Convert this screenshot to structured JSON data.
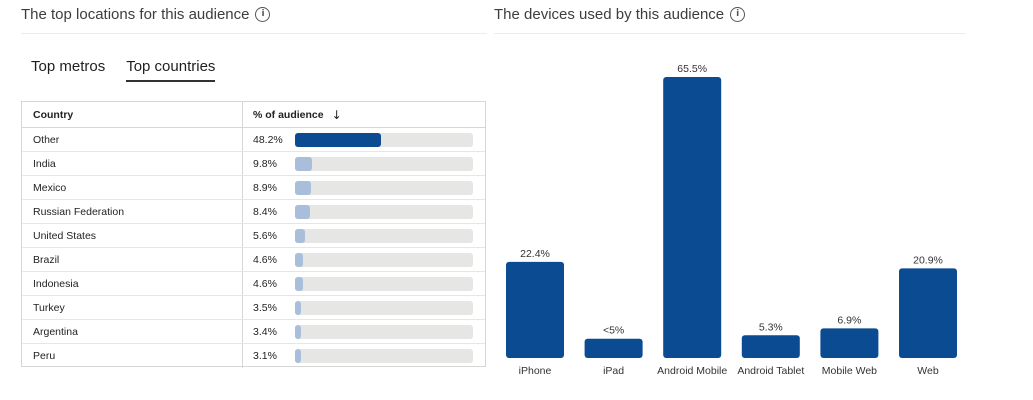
{
  "locations": {
    "title": "The top locations for this audience",
    "tabs": [
      "Top metros",
      "Top countries"
    ],
    "active_tab": 1,
    "table": {
      "headers": {
        "country": "Country",
        "pct": "% of audience"
      },
      "rows": [
        {
          "country": "Other",
          "pct_label": "48.2%",
          "value": 48.2
        },
        {
          "country": "India",
          "pct_label": "9.8%",
          "value": 9.8
        },
        {
          "country": "Mexico",
          "pct_label": "8.9%",
          "value": 8.9
        },
        {
          "country": "Russian Federation",
          "pct_label": "8.4%",
          "value": 8.4
        },
        {
          "country": "United States",
          "pct_label": "5.6%",
          "value": 5.6
        },
        {
          "country": "Brazil",
          "pct_label": "4.6%",
          "value": 4.6
        },
        {
          "country": "Indonesia",
          "pct_label": "4.6%",
          "value": 4.6
        },
        {
          "country": "Turkey",
          "pct_label": "3.5%",
          "value": 3.5
        },
        {
          "country": "Argentina",
          "pct_label": "3.4%",
          "value": 3.4
        },
        {
          "country": "Peru",
          "pct_label": "3.1%",
          "value": 3.1
        }
      ]
    }
  },
  "devices": {
    "title": "The devices used by this audience"
  },
  "icons": {
    "info": "info-icon",
    "sort": "arrow-down-icon"
  },
  "colors": {
    "primary_bar": "#0a4b92",
    "secondary_bar": "#a9bedb",
    "track": "#e6e6e4"
  },
  "chart_data": {
    "type": "bar",
    "categories": [
      "iPhone",
      "iPad",
      "Android Mobile",
      "Android Tablet",
      "Mobile Web",
      "Web"
    ],
    "values": [
      22.4,
      4.5,
      65.5,
      5.3,
      6.9,
      20.9
    ],
    "data_labels": [
      "22.4%",
      "<5%",
      "65.5%",
      "5.3%",
      "6.9%",
      "20.9%"
    ],
    "title": "",
    "xlabel": "",
    "ylabel": "",
    "ylim": [
      0,
      65.5
    ],
    "grid": false,
    "color": "#0a4b92"
  }
}
